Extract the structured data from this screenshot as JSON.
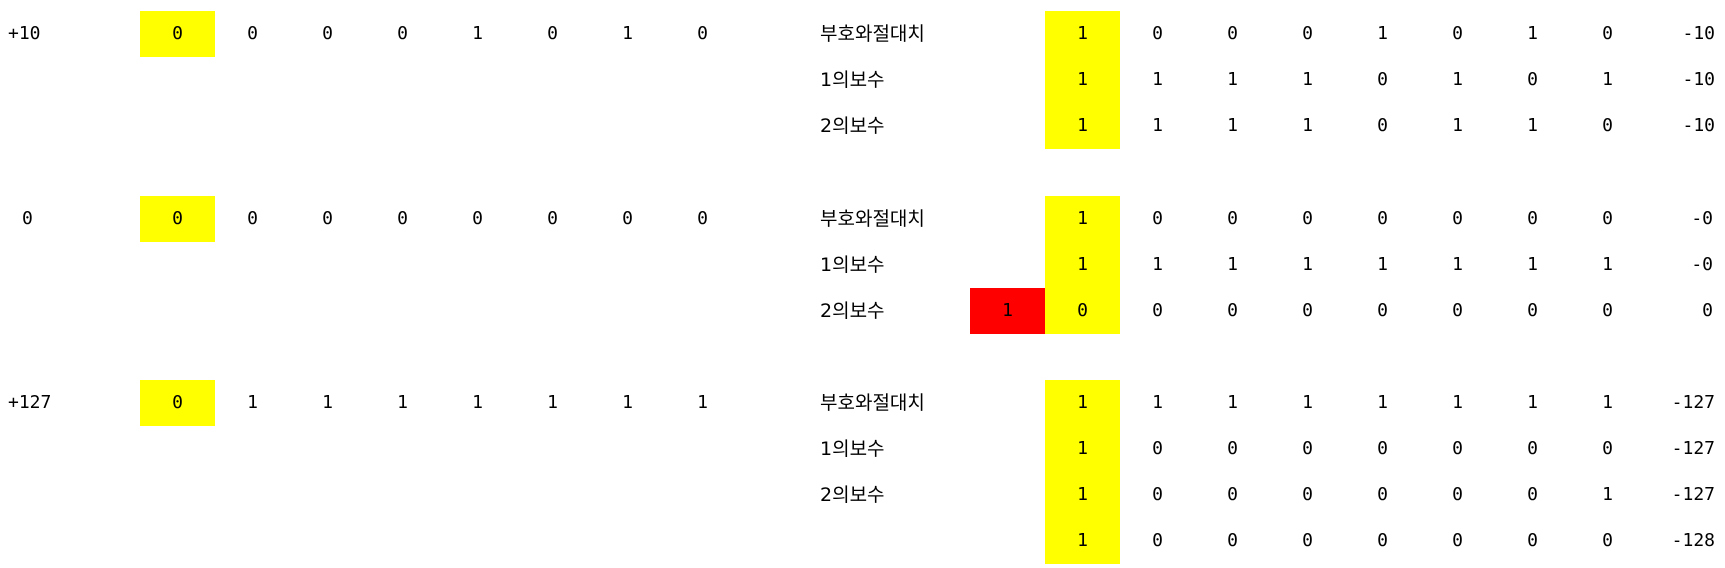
{
  "colors": {
    "sign_bit_highlight": "#ffff00",
    "carry_bit_highlight": "#ff0000"
  },
  "groups": [
    {
      "positive_label": "+10",
      "positive_bits": [
        "0",
        "0",
        "0",
        "0",
        "1",
        "0",
        "1",
        "0"
      ],
      "rows": [
        {
          "label": "부호와절대치",
          "carry": "",
          "bits": [
            "1",
            "0",
            "0",
            "0",
            "1",
            "0",
            "1",
            "0"
          ],
          "value": "-10"
        },
        {
          "label": "1의보수",
          "carry": "",
          "bits": [
            "1",
            "1",
            "1",
            "1",
            "0",
            "1",
            "0",
            "1"
          ],
          "value": "-10"
        },
        {
          "label": "2의보수",
          "carry": "",
          "bits": [
            "1",
            "1",
            "1",
            "1",
            "0",
            "1",
            "1",
            "0"
          ],
          "value": "-10"
        }
      ]
    },
    {
      "positive_label": "0",
      "positive_bits": [
        "0",
        "0",
        "0",
        "0",
        "0",
        "0",
        "0",
        "0"
      ],
      "rows": [
        {
          "label": "부호와절대치",
          "carry": "",
          "bits": [
            "1",
            "0",
            "0",
            "0",
            "0",
            "0",
            "0",
            "0"
          ],
          "value": "-0"
        },
        {
          "label": "1의보수",
          "carry": "",
          "bits": [
            "1",
            "1",
            "1",
            "1",
            "1",
            "1",
            "1",
            "1"
          ],
          "value": "-0"
        },
        {
          "label": "2의보수",
          "carry": "1",
          "bits": [
            "0",
            "0",
            "0",
            "0",
            "0",
            "0",
            "0",
            "0"
          ],
          "value": "0"
        }
      ]
    },
    {
      "positive_label": "+127",
      "positive_bits": [
        "0",
        "1",
        "1",
        "1",
        "1",
        "1",
        "1",
        "1"
      ],
      "rows": [
        {
          "label": "부호와절대치",
          "carry": "",
          "bits": [
            "1",
            "1",
            "1",
            "1",
            "1",
            "1",
            "1",
            "1"
          ],
          "value": "-127"
        },
        {
          "label": "1의보수",
          "carry": "",
          "bits": [
            "1",
            "0",
            "0",
            "0",
            "0",
            "0",
            "0",
            "0"
          ],
          "value": "-127"
        },
        {
          "label": "2의보수",
          "carry": "",
          "bits": [
            "1",
            "0",
            "0",
            "0",
            "0",
            "0",
            "0",
            "1"
          ],
          "value": "-127"
        },
        {
          "label": "",
          "carry": "",
          "bits": [
            "1",
            "0",
            "0",
            "0",
            "0",
            "0",
            "0",
            "0"
          ],
          "value": "-128"
        }
      ]
    }
  ]
}
